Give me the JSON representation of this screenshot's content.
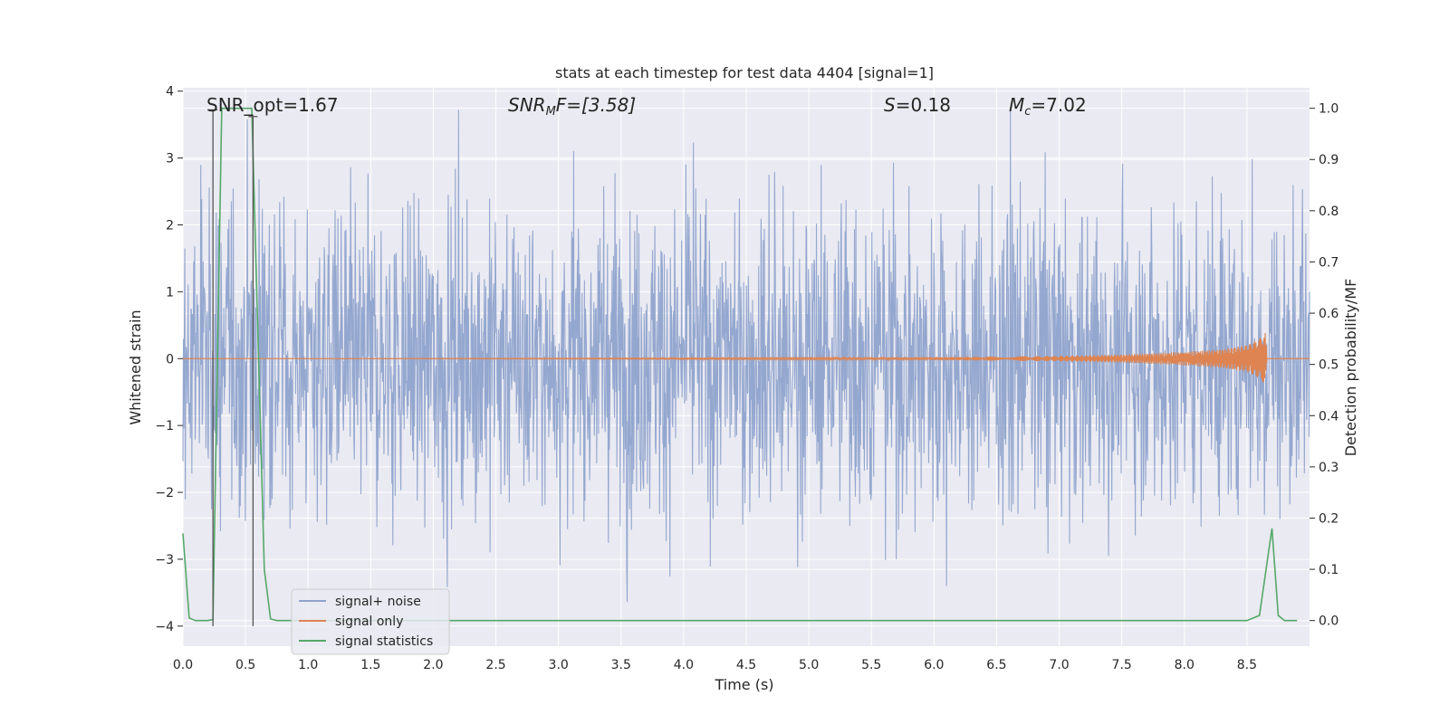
{
  "chart_data": {
    "type": "line",
    "title": "stats at each timestep for test data 4404 [signal=1]",
    "xlabel": "Time (s)",
    "ylabel_left": "Whitened strain",
    "ylabel_right": "Detection probability/MF",
    "xlim": [
      0,
      9.0
    ],
    "ylim_left": [
      -4.3,
      4.05
    ],
    "ylim_right": [
      -0.05,
      1.04
    ],
    "x_ticks": [
      "0.0",
      "0.5",
      "1.0",
      "1.5",
      "2.0",
      "2.5",
      "3.0",
      "3.5",
      "4.0",
      "4.5",
      "5.0",
      "5.5",
      "6.0",
      "6.5",
      "7.0",
      "7.5",
      "8.0",
      "8.5"
    ],
    "y_ticks_left": [
      "4",
      "3",
      "2",
      "1",
      "0",
      "−1",
      "−2",
      "−3",
      "−4"
    ],
    "y_ticks_right": [
      "1.0",
      "0.9",
      "0.8",
      "0.7",
      "0.6",
      "0.5",
      "0.4",
      "0.3",
      "0.2",
      "0.1",
      "0.0"
    ],
    "grid": true,
    "annotations": {
      "snr_opt": "SNR_opt=1.67",
      "snr_mf_name": "SNR",
      "snr_mf_sub": "M",
      "snr_mf_rest": "F=[3.58]",
      "s_name": "S",
      "s_rest": "=0.18",
      "mc_name": "M",
      "mc_sub": "c",
      "mc_rest": "=7.02"
    },
    "legend": {
      "position": "lower left",
      "entries": [
        "signal+ noise",
        "signal only",
        "signal statistics"
      ]
    },
    "colors": {
      "noise": "#8fa3cc",
      "signal": "#dd8452",
      "stats": "#55a868",
      "marker": "#555555",
      "background": "#eaeaf2"
    },
    "series": [
      {
        "name": "signal+ noise",
        "axis": "left",
        "description_range": "whitened strain, roughly within [-4, 3.8]",
        "envelope": {
          "typical_max": 2.2,
          "typical_min": -2.2,
          "peak_max": 3.8,
          "peak_min": -4.0
        }
      },
      {
        "name": "signal only",
        "axis": "left",
        "x": [
          0.0,
          5.0,
          6.0,
          7.0,
          7.5,
          8.0,
          8.3,
          8.5,
          8.6,
          8.65,
          8.66,
          9.0
        ],
        "amplitude": [
          0.0,
          0.01,
          0.02,
          0.04,
          0.06,
          0.1,
          0.14,
          0.2,
          0.3,
          0.4,
          0.0,
          0.0
        ]
      },
      {
        "name": "signal statistics",
        "axis": "right",
        "x": [
          0.0,
          0.05,
          0.1,
          0.15,
          0.2,
          0.24,
          0.31,
          0.55,
          0.6,
          0.65,
          0.7,
          0.75,
          0.8,
          8.5,
          8.6,
          8.7,
          8.75,
          8.8,
          8.85,
          8.9
        ],
        "y": [
          0.17,
          0.005,
          0.0,
          0.0,
          0.0,
          0.002,
          1.0,
          1.0,
          0.55,
          0.1,
          0.003,
          0.0,
          0.0,
          0.0,
          0.01,
          0.18,
          0.01,
          0.0,
          0.0,
          0.0
        ]
      }
    ],
    "markers": [
      {
        "x": 0.24,
        "y_top": 3.72,
        "y_bottom": -4.0
      },
      {
        "x": 0.56,
        "y_top": 3.62,
        "y_bottom": -4.0
      }
    ]
  }
}
